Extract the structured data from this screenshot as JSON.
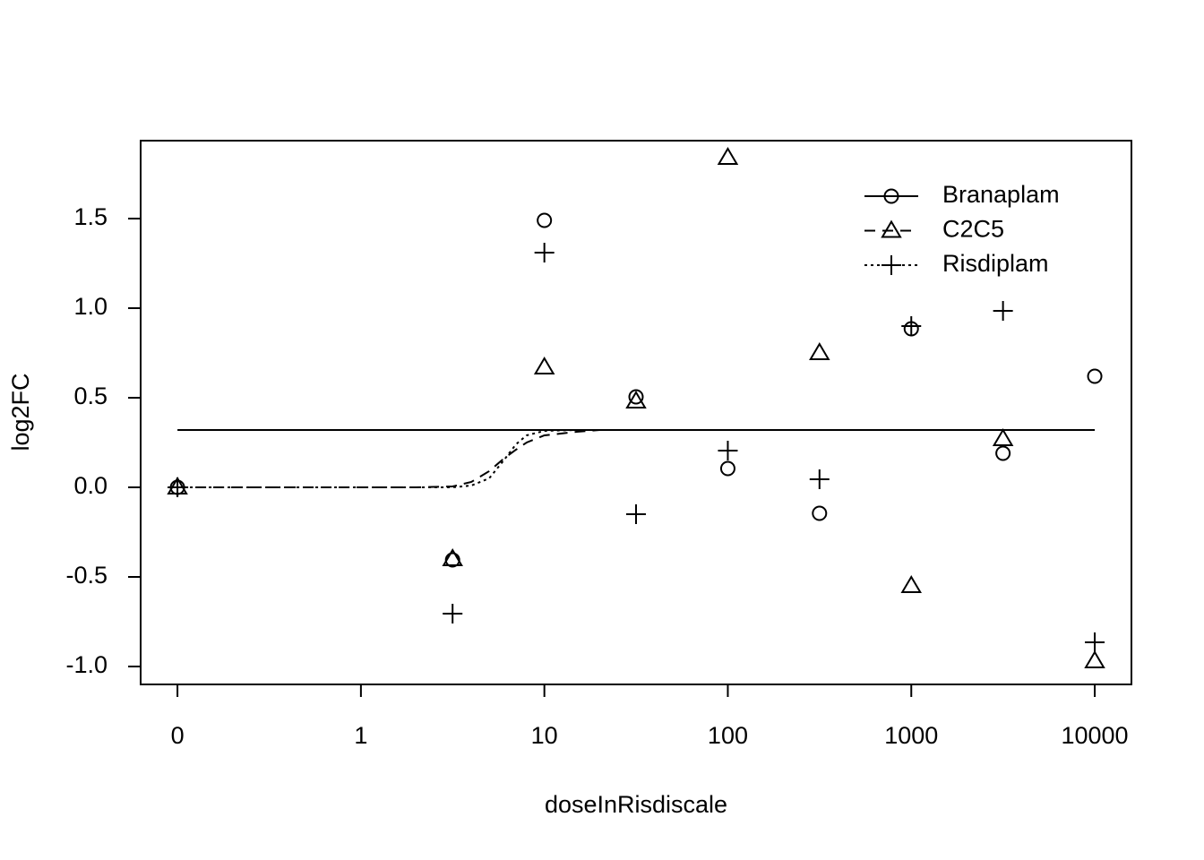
{
  "chart_data": {
    "type": "scatter",
    "x_label": "doseInRisdiscale",
    "y_label": "log2FC",
    "log_x": true,
    "x": [
      0,
      3.16,
      10,
      31.6,
      100,
      316,
      1000,
      3162,
      10000
    ],
    "xlim": [
      0.063,
      15850
    ],
    "xticks": [
      {
        "value": 0,
        "label": "0"
      },
      1,
      10,
      100,
      1000,
      10000
    ],
    "ylim": [
      -1.1,
      1.935
    ],
    "yticks": [
      {
        "value": -1,
        "label": "-1.0"
      },
      -0.5,
      {
        "value": 0,
        "label": "0.0"
      },
      0.5,
      {
        "value": 1,
        "label": "1.0"
      },
      1.5
    ],
    "legend": "topright",
    "series": [
      {
        "name": "Branaplam",
        "color": "#000000",
        "marker": "circle",
        "line": "solid",
        "values": [
          0,
          -0.405,
          1.49,
          0.505,
          0.105,
          -0.145,
          0.885,
          0.19,
          0.62
        ],
        "fit": {
          "x": [
            0,
            10000
          ],
          "values": [
            0.32,
            0.32
          ]
        }
      },
      {
        "name": "C2C5",
        "color": "#000000",
        "marker": "triangle",
        "line": "dashed",
        "values": [
          0,
          -0.4,
          0.67,
          0.48,
          1.84,
          0.75,
          -0.55,
          0.27,
          -0.97
        ],
        "fit": {
          "x": [
            0,
            1,
            2,
            3.16,
            4,
            5,
            6,
            7,
            8,
            10,
            15,
            20,
            10000
          ],
          "values": [
            0,
            0,
            0,
            0.005,
            0.03,
            0.09,
            0.16,
            0.21,
            0.25,
            0.29,
            0.31,
            0.32,
            0.32
          ]
        }
      },
      {
        "name": "Risdiplam",
        "color": "#000000",
        "marker": "plus",
        "line": "dotted",
        "values": [
          0,
          -0.705,
          1.31,
          -0.15,
          0.205,
          0.045,
          0.9,
          0.985,
          -0.865
        ],
        "fit": {
          "x": [
            0,
            1,
            2,
            3.16,
            4,
            5,
            6,
            7,
            8,
            10,
            15,
            10000
          ],
          "values": [
            0,
            0,
            0,
            0,
            0.01,
            0.05,
            0.15,
            0.24,
            0.29,
            0.315,
            0.32,
            0.32
          ]
        }
      }
    ]
  }
}
